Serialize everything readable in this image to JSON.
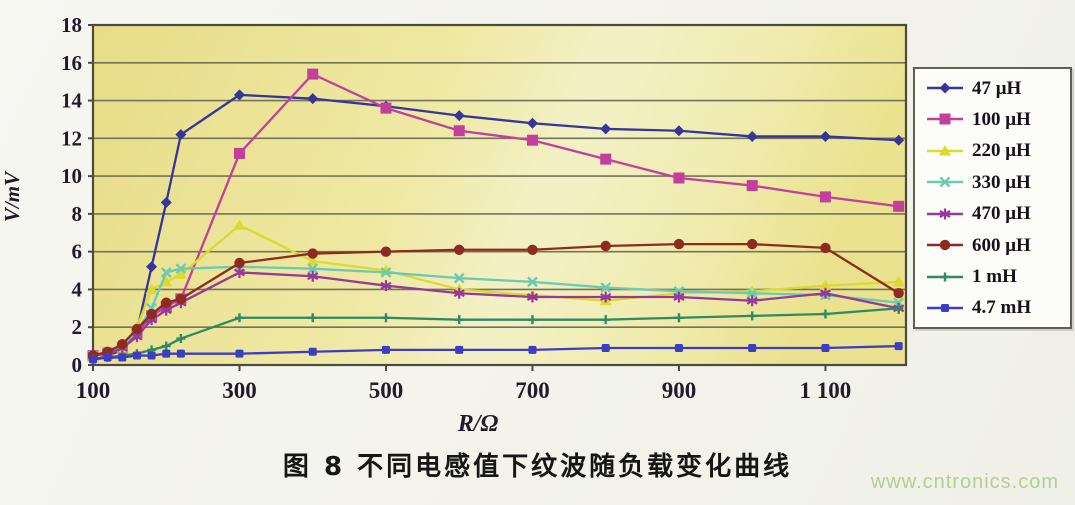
{
  "figure": {
    "caption": "图 8  不同电感值下纹波随负载变化曲线",
    "watermark": "www.cntronics.com"
  },
  "colors": {
    "plot_bg_left": "#e7dc87",
    "plot_bg_mid": "#f3f0c6",
    "plot_bg_right": "#eae28e",
    "grid": "#73735c",
    "axis": "#4a4a3e",
    "tick_text": "#221a2a",
    "legend_border": "#5f5f55",
    "caption_text": "#161616",
    "watermark_text": "#b5cf92"
  },
  "chart_data": {
    "type": "line",
    "title": "",
    "xlabel": "R/Ω",
    "ylabel": "V/mV",
    "xlim": [
      100,
      1210
    ],
    "ylim": [
      0,
      18
    ],
    "grid": "horizontal",
    "legend_position": "right",
    "x_ticks": [
      100,
      300,
      500,
      700,
      900,
      1100
    ],
    "x_tick_labels": [
      "100",
      "300",
      "500",
      "700",
      "900",
      "1 100"
    ],
    "y_ticks": [
      0,
      2,
      4,
      6,
      8,
      10,
      12,
      14,
      16,
      18
    ],
    "x": [
      100,
      120,
      140,
      160,
      180,
      200,
      220,
      300,
      400,
      500,
      600,
      700,
      800,
      900,
      1000,
      1100,
      1200
    ],
    "series": [
      {
        "name": "47 μH",
        "color": "#35359a",
        "marker": "diamond",
        "values": [
          0.4,
          0.5,
          0.8,
          1.8,
          5.2,
          8.6,
          12.2,
          14.3,
          14.1,
          13.7,
          13.2,
          12.8,
          12.5,
          12.4,
          12.1,
          12.1,
          11.9
        ]
      },
      {
        "name": "100 μH",
        "color": "#c43f9d",
        "marker": "square",
        "values": [
          0.5,
          0.6,
          0.9,
          1.7,
          2.6,
          3.1,
          3.5,
          11.2,
          15.4,
          13.6,
          12.4,
          11.9,
          10.9,
          9.9,
          9.5,
          8.9,
          8.4
        ]
      },
      {
        "name": "220 μH",
        "color": "#dcd92f",
        "marker": "triangle",
        "values": [
          0.4,
          0.6,
          0.9,
          2.0,
          4.0,
          4.4,
          4.8,
          7.4,
          5.5,
          5.0,
          4.0,
          3.7,
          3.4,
          3.8,
          3.9,
          4.2,
          4.4
        ]
      },
      {
        "name": "330 μH",
        "color": "#6cc9b4",
        "marker": "x",
        "values": [
          0.5,
          0.7,
          1.0,
          1.8,
          3.0,
          4.9,
          5.1,
          5.2,
          5.1,
          4.9,
          4.6,
          4.4,
          4.1,
          3.9,
          3.8,
          3.7,
          3.3
        ]
      },
      {
        "name": "470 μH",
        "color": "#96399b",
        "marker": "star",
        "values": [
          0.5,
          0.6,
          0.9,
          1.5,
          2.4,
          2.9,
          3.3,
          4.9,
          4.7,
          4.2,
          3.8,
          3.6,
          3.6,
          3.6,
          3.4,
          3.8,
          3.0
        ]
      },
      {
        "name": "600 μH",
        "color": "#8e2b21",
        "marker": "circle",
        "values": [
          0.5,
          0.7,
          1.1,
          1.9,
          2.7,
          3.3,
          3.5,
          5.4,
          5.9,
          6.0,
          6.1,
          6.1,
          6.3,
          6.4,
          6.4,
          6.2,
          3.8
        ]
      },
      {
        "name": "1 mH",
        "color": "#2f8a63",
        "marker": "plus",
        "values": [
          0.3,
          0.4,
          0.5,
          0.6,
          0.8,
          1.0,
          1.4,
          2.5,
          2.5,
          2.5,
          2.4,
          2.4,
          2.4,
          2.5,
          2.6,
          2.7,
          3.0
        ]
      },
      {
        "name": "4.7 mH",
        "color": "#3d3dc4",
        "marker": "square-small",
        "values": [
          0.3,
          0.4,
          0.4,
          0.5,
          0.5,
          0.6,
          0.6,
          0.6,
          0.7,
          0.8,
          0.8,
          0.8,
          0.9,
          0.9,
          0.9,
          0.9,
          1.0
        ]
      }
    ]
  }
}
